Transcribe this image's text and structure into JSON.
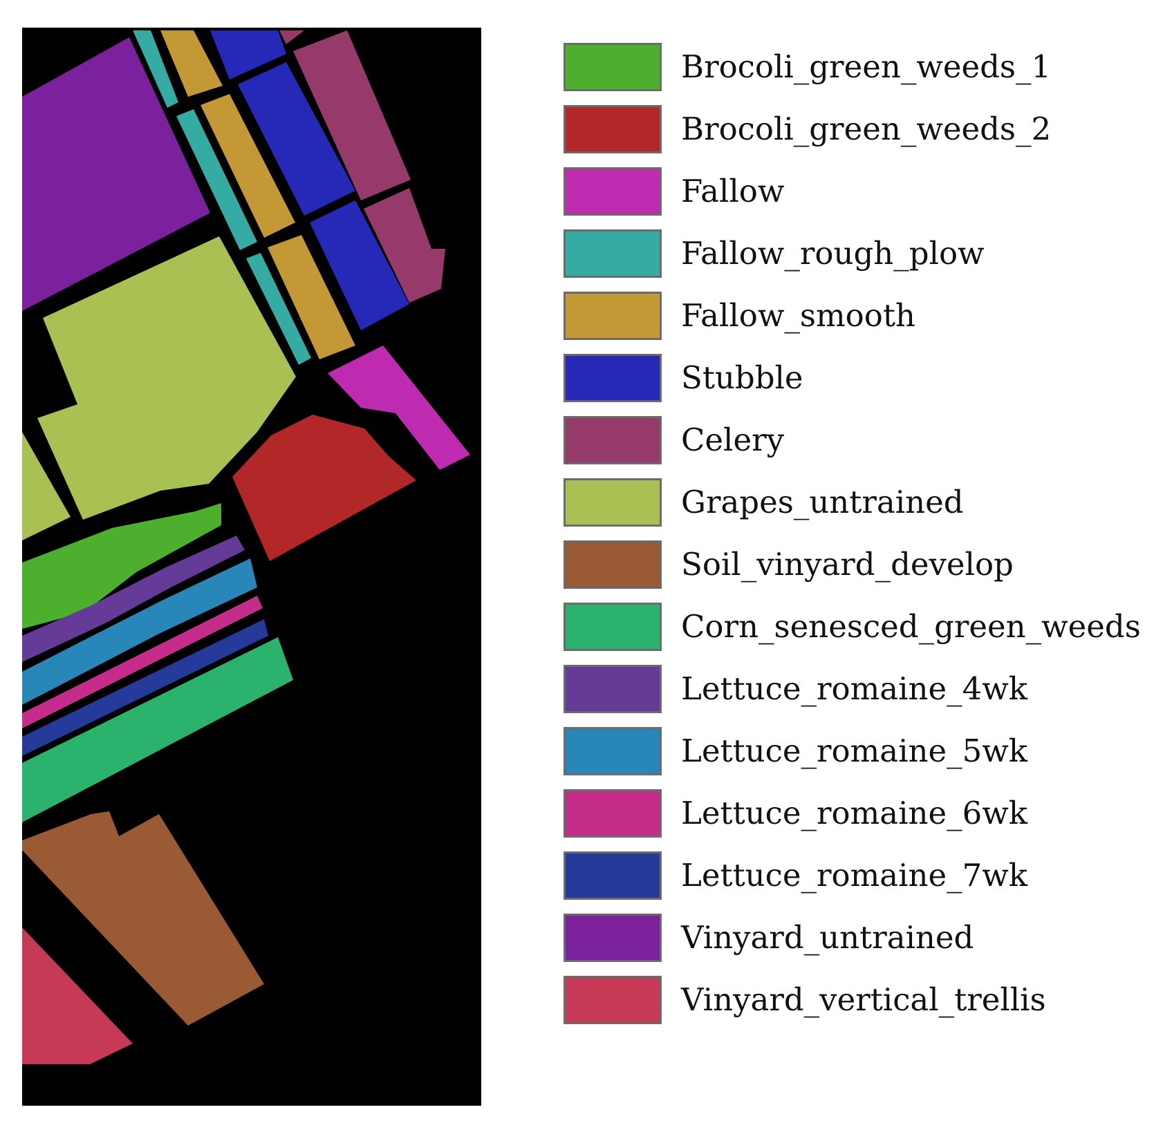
{
  "figure": {
    "background_color": "#000000"
  },
  "legend": {
    "items": [
      {
        "label": "Brocoli_green_weeds_1",
        "color": "#4daf2e"
      },
      {
        "label": "Brocoli_green_weeds_2",
        "color": "#b22828"
      },
      {
        "label": "Fallow",
        "color": "#be2bb1"
      },
      {
        "label": "Fallow_rough_plow",
        "color": "#34aba3"
      },
      {
        "label": "Fallow_smooth",
        "color": "#c49935"
      },
      {
        "label": "Stubble",
        "color": "#2629b8"
      },
      {
        "label": "Celery",
        "color": "#963a6b"
      },
      {
        "label": "Grapes_untrained",
        "color": "#a9c152"
      },
      {
        "label": "Soil_vinyard_develop",
        "color": "#9a5a34"
      },
      {
        "label": "Corn_senesced_green_weeds",
        "color": "#2bb26d"
      },
      {
        "label": "Lettuce_romaine_4wk",
        "color": "#653b98"
      },
      {
        "label": "Lettuce_romaine_5wk",
        "color": "#2986b8"
      },
      {
        "label": "Lettuce_romaine_6wk",
        "color": "#c52d8a"
      },
      {
        "label": "Lettuce_romaine_7wk",
        "color": "#263a9a"
      },
      {
        "label": "Vinyard_untrained",
        "color": "#7c219e"
      },
      {
        "label": "Vinyard_vertical_trellis",
        "color": "#c63a58"
      }
    ]
  }
}
